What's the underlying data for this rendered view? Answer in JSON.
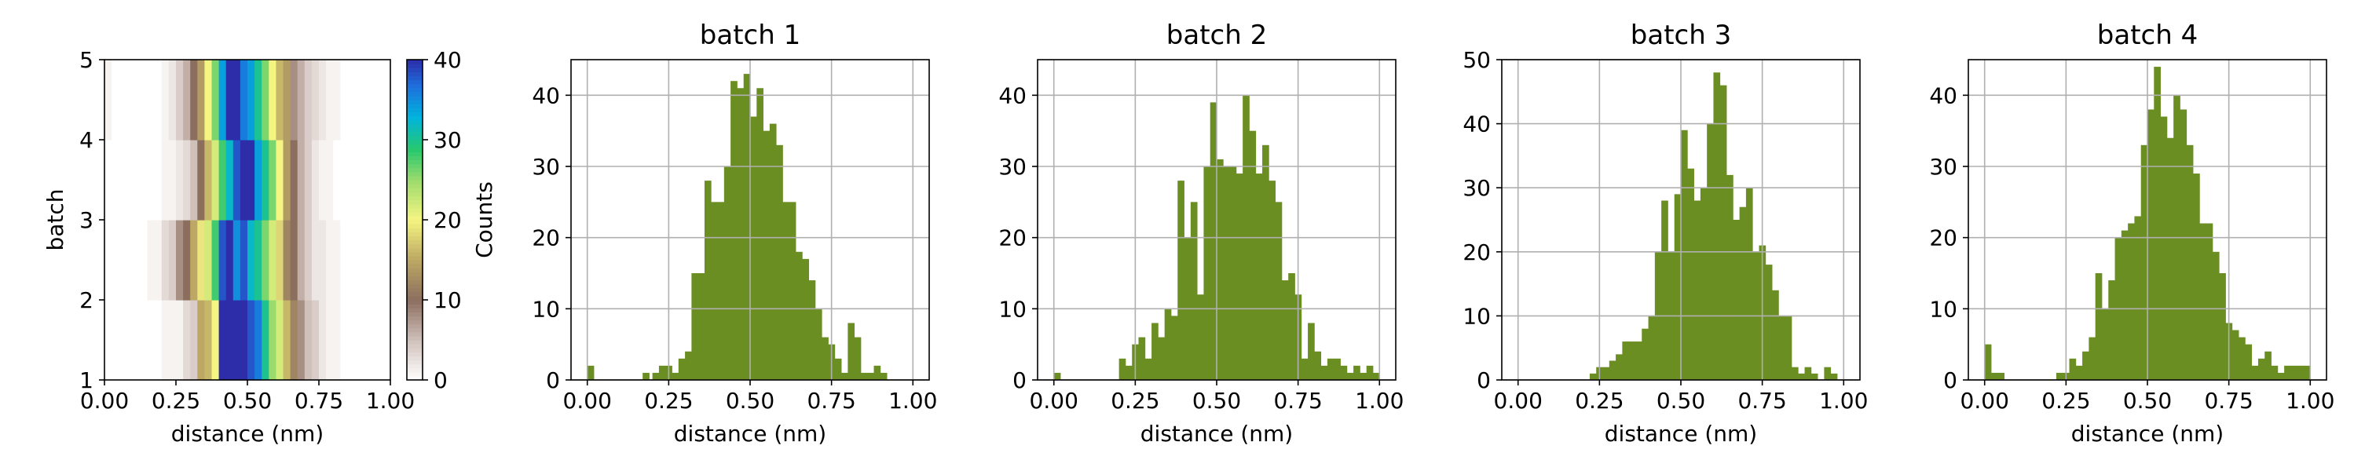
{
  "colors": {
    "bar": "#6b8e23",
    "grid": "#b0b0b0",
    "axis": "#000000"
  },
  "chart_data": [
    {
      "type": "heatmap",
      "title": "",
      "xlabel": "distance (nm)",
      "ylabel": "batch",
      "xlim": [
        0,
        1
      ],
      "ylim": [
        1,
        5
      ],
      "xticks": [
        "0.00",
        "0.25",
        "0.50",
        "0.75",
        "1.00"
      ],
      "yticks": [
        "1",
        "2",
        "3",
        "4",
        "5"
      ],
      "x_bins": 40,
      "rows": [
        "batch 1",
        "batch 2",
        "batch 3",
        "batch 4"
      ],
      "z": [
        [
          0,
          0,
          0,
          0,
          0,
          0,
          0,
          0,
          1,
          1,
          1,
          3,
          4,
          15,
          16,
          20,
          40,
          41,
          40,
          42,
          38,
          36,
          30,
          25,
          22,
          16,
          12,
          8,
          5,
          4,
          2,
          1,
          1,
          0,
          0,
          0,
          0,
          0,
          0,
          0
        ],
        [
          0,
          0,
          0,
          0,
          0,
          0,
          1,
          1,
          3,
          4,
          8,
          10,
          15,
          19,
          22,
          28,
          38,
          40,
          35,
          38,
          32,
          30,
          26,
          22,
          18,
          12,
          10,
          6,
          4,
          2,
          2,
          1,
          1,
          0,
          0,
          0,
          0,
          0,
          0,
          0
        ],
        [
          0,
          0,
          0,
          0,
          0,
          0,
          0,
          0,
          1,
          1,
          2,
          3,
          5,
          10,
          16,
          22,
          28,
          32,
          38,
          40,
          42,
          34,
          30,
          26,
          20,
          14,
          10,
          6,
          4,
          2,
          1,
          1,
          0,
          0,
          0,
          0,
          0,
          0,
          0,
          0
        ],
        [
          1,
          0,
          0,
          0,
          0,
          0,
          0,
          0,
          1,
          2,
          4,
          6,
          10,
          14,
          20,
          26,
          34,
          42,
          40,
          36,
          34,
          30,
          26,
          20,
          16,
          14,
          8,
          6,
          4,
          3,
          2,
          1,
          1,
          0,
          0,
          0,
          0,
          0,
          0,
          0
        ]
      ],
      "colorbar": {
        "label": "Counts",
        "min": 0,
        "max": 40,
        "ticks": [
          "0",
          "10",
          "20",
          "30",
          "40"
        ]
      }
    },
    {
      "type": "bar",
      "title": "batch 1",
      "xlabel": "distance (nm)",
      "ylabel": "",
      "xlim": [
        -0.05,
        1.05
      ],
      "ylim": [
        0,
        45
      ],
      "xticks": [
        "0.00",
        "0.25",
        "0.50",
        "0.75",
        "1.00"
      ],
      "yticks": [
        "0",
        "10",
        "20",
        "30",
        "40"
      ],
      "x": [
        0.0,
        0.17,
        0.2,
        0.22,
        0.24,
        0.26,
        0.28,
        0.3,
        0.32,
        0.34,
        0.36,
        0.38,
        0.4,
        0.42,
        0.44,
        0.46,
        0.48,
        0.5,
        0.52,
        0.54,
        0.56,
        0.58,
        0.6,
        0.62,
        0.64,
        0.66,
        0.68,
        0.7,
        0.72,
        0.74,
        0.76,
        0.78,
        0.8,
        0.82,
        0.84,
        0.86,
        0.88,
        0.9
      ],
      "values": [
        2,
        1,
        1,
        2,
        2,
        1,
        3,
        4,
        15,
        15,
        28,
        25,
        25,
        30,
        42,
        41,
        43,
        37,
        41,
        35,
        36,
        33,
        25,
        25,
        18,
        17,
        14,
        10,
        6,
        5,
        3,
        1,
        8,
        6,
        1,
        1,
        2,
        1
      ],
      "bin_width": 0.02,
      "grid": true
    },
    {
      "type": "bar",
      "title": "batch 2",
      "xlabel": "distance (nm)",
      "ylabel": "",
      "xlim": [
        -0.05,
        1.05
      ],
      "ylim": [
        0,
        45
      ],
      "xticks": [
        "0.00",
        "0.25",
        "0.50",
        "0.75",
        "1.00"
      ],
      "yticks": [
        "0",
        "10",
        "20",
        "30",
        "40"
      ],
      "x": [
        0.0,
        0.2,
        0.22,
        0.24,
        0.26,
        0.28,
        0.3,
        0.32,
        0.34,
        0.36,
        0.38,
        0.4,
        0.42,
        0.44,
        0.46,
        0.48,
        0.5,
        0.52,
        0.54,
        0.56,
        0.58,
        0.6,
        0.62,
        0.64,
        0.66,
        0.68,
        0.7,
        0.72,
        0.74,
        0.76,
        0.78,
        0.8,
        0.82,
        0.84,
        0.86,
        0.88,
        0.9,
        0.92,
        0.94,
        0.96,
        0.98
      ],
      "values": [
        1,
        3,
        2,
        5,
        6,
        3,
        8,
        6,
        10,
        9,
        28,
        20,
        25,
        12,
        30,
        39,
        31,
        30,
        30,
        29,
        40,
        35,
        29,
        33,
        28,
        25,
        14,
        15,
        12,
        3,
        8,
        4,
        2,
        3,
        3,
        2,
        1,
        2,
        1,
        2,
        1
      ],
      "bin_width": 0.02,
      "grid": true
    },
    {
      "type": "bar",
      "title": "batch 3",
      "xlabel": "distance (nm)",
      "ylabel": "",
      "xlim": [
        -0.05,
        1.05
      ],
      "ylim": [
        0,
        50
      ],
      "xticks": [
        "0.00",
        "0.25",
        "0.50",
        "0.75",
        "1.00"
      ],
      "yticks": [
        "0",
        "10",
        "20",
        "30",
        "40",
        "50"
      ],
      "x": [
        0.22,
        0.24,
        0.26,
        0.28,
        0.3,
        0.32,
        0.34,
        0.36,
        0.38,
        0.4,
        0.42,
        0.44,
        0.46,
        0.48,
        0.5,
        0.52,
        0.54,
        0.56,
        0.58,
        0.6,
        0.62,
        0.64,
        0.66,
        0.68,
        0.7,
        0.72,
        0.74,
        0.76,
        0.78,
        0.8,
        0.82,
        0.84,
        0.86,
        0.88,
        0.9,
        0.92,
        0.94,
        0.96
      ],
      "values": [
        1,
        2,
        2,
        3,
        4,
        6,
        6,
        6,
        8,
        10,
        20,
        28,
        20,
        29,
        39,
        33,
        28,
        30,
        40,
        48,
        46,
        32,
        25,
        27,
        30,
        20,
        21,
        18,
        14,
        10,
        10,
        2,
        1,
        2,
        1,
        0,
        2,
        1
      ],
      "bin_width": 0.02,
      "grid": true
    },
    {
      "type": "bar",
      "title": "batch 4",
      "xlabel": "distance (nm)",
      "ylabel": "",
      "xlim": [
        -0.05,
        1.05
      ],
      "ylim": [
        0,
        45
      ],
      "xticks": [
        "0.00",
        "0.25",
        "0.50",
        "0.75",
        "1.00"
      ],
      "yticks": [
        "0",
        "10",
        "20",
        "30",
        "40"
      ],
      "x": [
        0.0,
        0.02,
        0.04,
        0.22,
        0.24,
        0.26,
        0.28,
        0.3,
        0.32,
        0.34,
        0.36,
        0.38,
        0.4,
        0.42,
        0.44,
        0.46,
        0.48,
        0.5,
        0.52,
        0.54,
        0.56,
        0.58,
        0.6,
        0.62,
        0.64,
        0.66,
        0.68,
        0.7,
        0.72,
        0.74,
        0.76,
        0.78,
        0.8,
        0.82,
        0.84,
        0.86,
        0.88,
        0.9,
        0.92,
        0.94,
        0.96,
        0.98
      ],
      "values": [
        5,
        1,
        1,
        1,
        1,
        3,
        2,
        4,
        6,
        15,
        10,
        14,
        20,
        21,
        22,
        23,
        33,
        38,
        44,
        37,
        34,
        40,
        38,
        33,
        29,
        22,
        22,
        18,
        15,
        8,
        7,
        6,
        5,
        2,
        3,
        4,
        2,
        1,
        2,
        2,
        2,
        2
      ],
      "bin_width": 0.02,
      "grid": true
    }
  ]
}
